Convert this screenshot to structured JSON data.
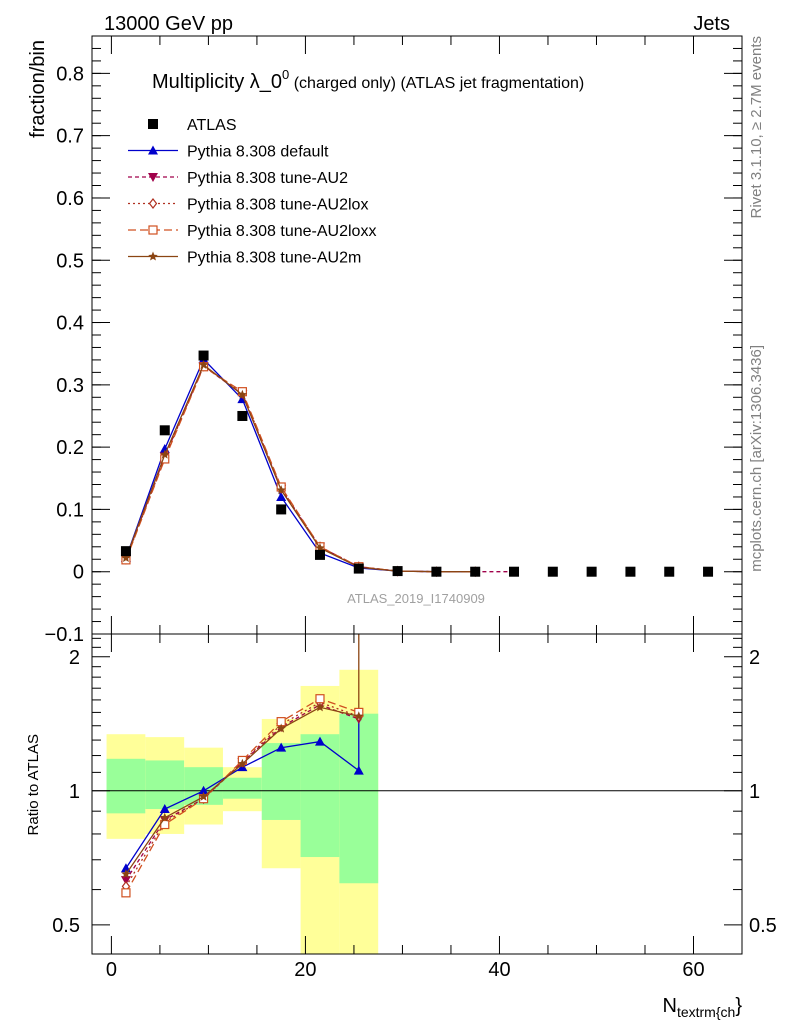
{
  "header": {
    "left": "13000 GeV pp",
    "right": "Jets"
  },
  "side_labels": {
    "top": "Rivet 3.1.10, ≥ 2.7M events",
    "bottom": "mcplots.cern.ch [arXiv:1306.3436]"
  },
  "chart_data": {
    "type": "line",
    "title_main": "Multiplicity λ_0",
    "title_sup": "0",
    "title_rest": " (charged only) (ATLAS jet fragmentation)",
    "watermark": "ATLAS_2019_I1740909",
    "xlabel": "N",
    "xlabel_sub": "textrm{ch",
    "xlabel_close": "}",
    "ylabel_main": "fraction/bin",
    "ylabel_ratio": "Ratio to ATLAS",
    "xlim": [
      -2,
      65
    ],
    "ylim_main": [
      -0.1,
      0.86
    ],
    "ylim_ratio": [
      0.43,
      2.25
    ],
    "xticks": [
      0,
      20,
      40,
      60
    ],
    "xtick_labels": [
      "0",
      "20",
      "40",
      "60"
    ],
    "yticks_main": [
      -0.1,
      0,
      0.1,
      0.2,
      0.3,
      0.4,
      0.5,
      0.6,
      0.7,
      0.8
    ],
    "ytick_labels_main": [
      "−0.1",
      "0",
      "0.1",
      "0.2",
      "0.3",
      "0.4",
      "0.5",
      "0.6",
      "0.7",
      "0.8"
    ],
    "yticks_ratio": [
      0.5,
      1,
      2
    ],
    "ytick_labels_ratio": [
      "0.5",
      "1",
      "2"
    ],
    "data": {
      "name": "ATLAS",
      "x": [
        1.5,
        5.5,
        9.5,
        13.5,
        17.5,
        21.5,
        25.5,
        29.5,
        33.5,
        37.5,
        41.5,
        45.5,
        49.5,
        53.5,
        57.5,
        61.5
      ],
      "y": [
        0.033,
        0.227,
        0.347,
        0.25,
        0.1,
        0.027,
        0.005,
        0.001,
        0.0,
        0.0,
        0.0,
        0.0,
        0.0,
        0.0,
        0.0,
        0.0
      ]
    },
    "bands": {
      "x_edges": [
        -0.5,
        3.5,
        7.5,
        11.5,
        15.5,
        19.5,
        23.5,
        27.5
      ],
      "yellow_lo": [
        0.78,
        0.8,
        0.84,
        0.9,
        0.67,
        0.4,
        0.4
      ],
      "yellow_hi": [
        1.34,
        1.32,
        1.25,
        1.13,
        1.45,
        1.72,
        1.87
      ],
      "green_lo": [
        0.89,
        0.91,
        0.93,
        0.96,
        0.86,
        0.71,
        0.62
      ],
      "green_hi": [
        1.18,
        1.17,
        1.13,
        1.07,
        1.28,
        1.34,
        1.49
      ]
    },
    "series": [
      {
        "name": "Pythia 8.308 default",
        "color": "#0000cc",
        "marker": "triangle-up",
        "dash": "",
        "x": [
          1.5,
          5.5,
          9.5,
          13.5,
          17.5,
          21.5,
          25.5,
          29.5,
          33.5,
          37.5
        ],
        "y": [
          0.022,
          0.197,
          0.341,
          0.277,
          0.12,
          0.03,
          0.006,
          0.001,
          0.0,
          0.0
        ],
        "ratio_x": [
          1.5,
          5.5,
          9.5,
          13.5,
          17.5,
          21.5,
          25.5
        ],
        "ratio": [
          0.67,
          0.91,
          1.0,
          1.13,
          1.25,
          1.29,
          1.11
        ]
      },
      {
        "name": "Pythia 8.308 tune-AU2",
        "color": "#a0004a",
        "marker": "triangle-down",
        "dash": "4,3",
        "x": [
          1.5,
          5.5,
          9.5,
          13.5,
          17.5,
          21.5,
          25.5,
          29.5,
          33.5,
          37.5,
          41.5
        ],
        "y": [
          0.021,
          0.185,
          0.33,
          0.285,
          0.133,
          0.04,
          0.008,
          0.001,
          0.0,
          0.0,
          0.0
        ],
        "ratio_x": [
          1.5,
          5.5,
          9.5,
          13.5,
          17.5,
          21.5,
          25.5
        ],
        "ratio": [
          0.63,
          0.86,
          0.96,
          1.16,
          1.39,
          1.56,
          1.45
        ]
      },
      {
        "name": "Pythia 8.308 tune-AU2lox",
        "color": "#b03020",
        "marker": "diamond",
        "dash": "2,3",
        "x": [
          1.5,
          5.5,
          9.5,
          13.5,
          17.5,
          21.5,
          25.5,
          29.5,
          33.5,
          37.5
        ],
        "y": [
          0.02,
          0.183,
          0.33,
          0.287,
          0.134,
          0.04,
          0.008,
          0.001,
          0.0,
          0.0
        ],
        "ratio_x": [
          1.5,
          5.5,
          9.5,
          13.5,
          17.5,
          21.5,
          25.5
        ],
        "ratio": [
          0.61,
          0.85,
          0.96,
          1.16,
          1.41,
          1.58,
          1.47
        ]
      },
      {
        "name": "Pythia 8.308 tune-AU2loxx",
        "color": "#d05020",
        "marker": "square-open",
        "dash": "8,4",
        "x": [
          1.5,
          5.5,
          9.5,
          13.5,
          17.5,
          21.5,
          25.5,
          29.5,
          33.5,
          37.5
        ],
        "y": [
          0.019,
          0.181,
          0.329,
          0.289,
          0.136,
          0.04,
          0.008,
          0.001,
          0.0,
          0.0
        ],
        "ratio_x": [
          1.5,
          5.5,
          9.5,
          13.5,
          17.5,
          21.5,
          25.5
        ],
        "ratio": [
          0.59,
          0.84,
          0.96,
          1.17,
          1.43,
          1.61,
          1.5
        ]
      },
      {
        "name": "Pythia 8.308 tune-AU2m",
        "color": "#8b4513",
        "marker": "star",
        "dash": "",
        "x": [
          1.5,
          5.5,
          9.5,
          13.5,
          17.5,
          21.5,
          25.5,
          29.5,
          33.5,
          37.5
        ],
        "y": [
          0.022,
          0.188,
          0.332,
          0.284,
          0.131,
          0.038,
          0.007,
          0.001,
          0.0,
          0.0
        ],
        "ratio_x": [
          1.5,
          5.5,
          9.5,
          13.5,
          17.5,
          21.5,
          25.5
        ],
        "ratio": [
          0.65,
          0.87,
          0.97,
          1.15,
          1.38,
          1.54,
          1.47
        ]
      }
    ]
  }
}
